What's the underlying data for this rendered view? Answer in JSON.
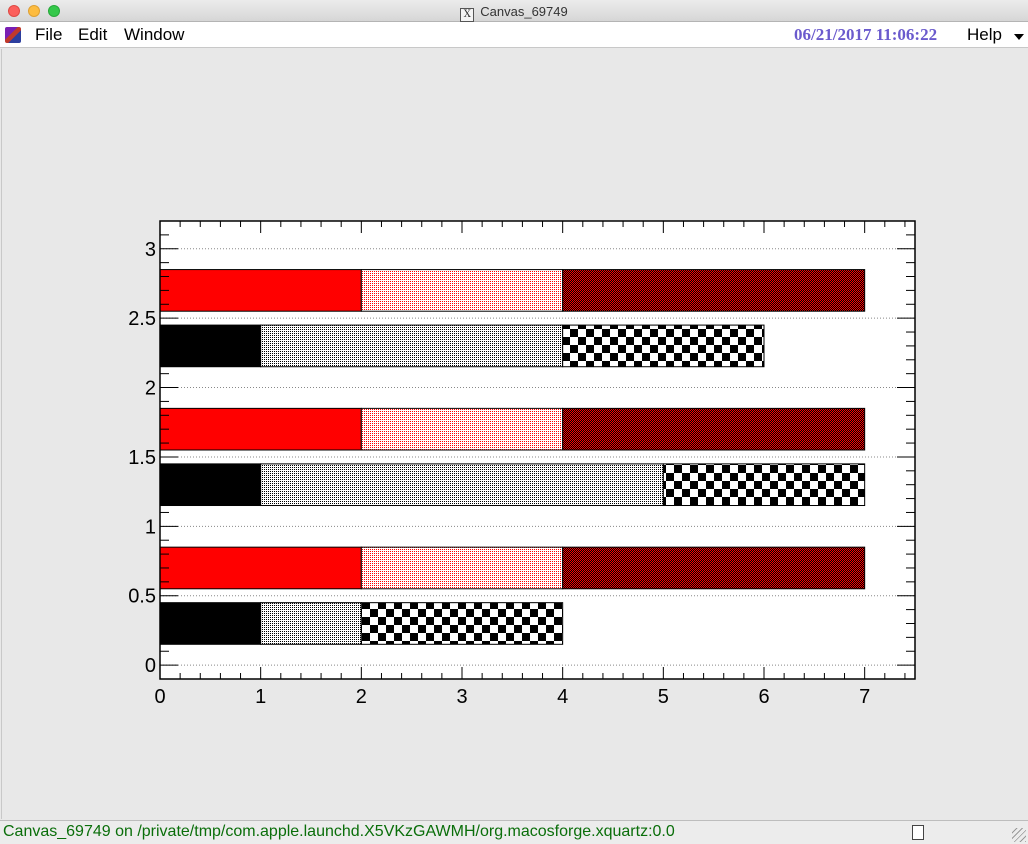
{
  "window": {
    "title": "Canvas_69749"
  },
  "menu": {
    "file": "File",
    "edit": "Edit",
    "window": "Window",
    "help": "Help"
  },
  "datetime": "06/21/2017 11:06:22",
  "status": {
    "text": "Canvas_69749 on /private/tmp/com.apple.launchd.X5VKzGAWMH/org.macosforge.xquartz:0.0"
  },
  "colors": {
    "red": "#ff0000",
    "black": "#000000",
    "date": "#6a5acd",
    "status": "#0a6e0a"
  },
  "chart_data": {
    "type": "bar",
    "orientation": "horizontal",
    "stacked": true,
    "xlim": [
      0,
      7.5
    ],
    "ylim": [
      -0.1,
      3.2
    ],
    "x_ticks": [
      "0",
      "1",
      "2",
      "3",
      "4",
      "5",
      "6",
      "7"
    ],
    "y_ticks": [
      "0",
      "0.5",
      "1",
      "1.5",
      "2",
      "2.5",
      "3"
    ],
    "grid": "horizontal dotted",
    "bars": [
      {
        "y": 0.3,
        "height": 0.3,
        "segments": [
          {
            "from": 0,
            "to": 1,
            "fill": "black-solid"
          },
          {
            "from": 1,
            "to": 2,
            "fill": "black-dots"
          },
          {
            "from": 2,
            "to": 4,
            "fill": "black-checker"
          }
        ]
      },
      {
        "y": 0.7,
        "height": 0.3,
        "segments": [
          {
            "from": 0,
            "to": 2,
            "fill": "red-solid"
          },
          {
            "from": 2,
            "to": 4,
            "fill": "red-dots"
          },
          {
            "from": 4,
            "to": 7,
            "fill": "red-hatch"
          }
        ]
      },
      {
        "y": 1.3,
        "height": 0.3,
        "segments": [
          {
            "from": 0,
            "to": 1,
            "fill": "black-solid"
          },
          {
            "from": 1,
            "to": 5,
            "fill": "black-dots"
          },
          {
            "from": 5,
            "to": 7,
            "fill": "black-checker"
          }
        ]
      },
      {
        "y": 1.7,
        "height": 0.3,
        "segments": [
          {
            "from": 0,
            "to": 2,
            "fill": "red-solid"
          },
          {
            "from": 2,
            "to": 4,
            "fill": "red-dots"
          },
          {
            "from": 4,
            "to": 7,
            "fill": "red-hatch"
          }
        ]
      },
      {
        "y": 2.3,
        "height": 0.3,
        "segments": [
          {
            "from": 0,
            "to": 1,
            "fill": "black-solid"
          },
          {
            "from": 1,
            "to": 4,
            "fill": "black-dots"
          },
          {
            "from": 4,
            "to": 6,
            "fill": "black-checker"
          }
        ]
      },
      {
        "y": 2.7,
        "height": 0.3,
        "segments": [
          {
            "from": 0,
            "to": 2,
            "fill": "red-solid"
          },
          {
            "from": 2,
            "to": 4,
            "fill": "red-dots"
          },
          {
            "from": 4,
            "to": 7,
            "fill": "red-hatch"
          }
        ]
      }
    ]
  }
}
